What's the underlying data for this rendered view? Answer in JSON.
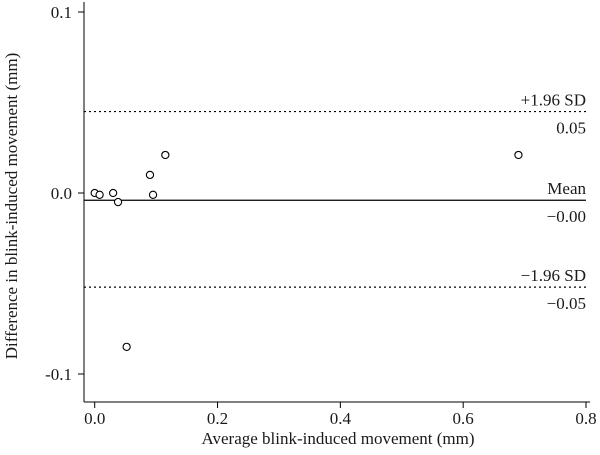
{
  "chart_data": {
    "type": "scatter",
    "title": "",
    "xlabel": "Average blink-induced movement (mm)",
    "ylabel": "Difference in blink-induced movement (mm)",
    "xlim": [
      -0.02,
      0.8
    ],
    "ylim": [
      -0.11,
      0.105
    ],
    "xticks": [
      0.0,
      0.2,
      0.4,
      0.6,
      0.8
    ],
    "xtick_labels": [
      "0.0",
      "0.2",
      "0.4",
      "0.6",
      "0.8"
    ],
    "yticks": [
      -0.1,
      0.0,
      0.1
    ],
    "ytick_labels": [
      "-0.1",
      "0.0",
      "0.1"
    ],
    "grid": false,
    "points": [
      {
        "x": 0.0,
        "y": 0.0
      },
      {
        "x": 0.008,
        "y": -0.001
      },
      {
        "x": 0.03,
        "y": 0.0
      },
      {
        "x": 0.038,
        "y": -0.005
      },
      {
        "x": 0.052,
        "y": -0.085
      },
      {
        "x": 0.09,
        "y": 0.01
      },
      {
        "x": 0.095,
        "y": -0.001
      },
      {
        "x": 0.115,
        "y": 0.021
      },
      {
        "x": 0.69,
        "y": 0.021
      }
    ],
    "reference_lines": [
      {
        "kind": "upper-limit",
        "y": 0.045,
        "style": "dotted",
        "name": "+1.96 SD",
        "value_label": "0.05"
      },
      {
        "kind": "mean",
        "y": -0.004,
        "style": "solid",
        "name": "Mean",
        "value_label": "−0.00"
      },
      {
        "kind": "lower-limit",
        "y": -0.052,
        "style": "dotted",
        "name": "−1.96 SD",
        "value_label": "−0.05"
      }
    ]
  }
}
